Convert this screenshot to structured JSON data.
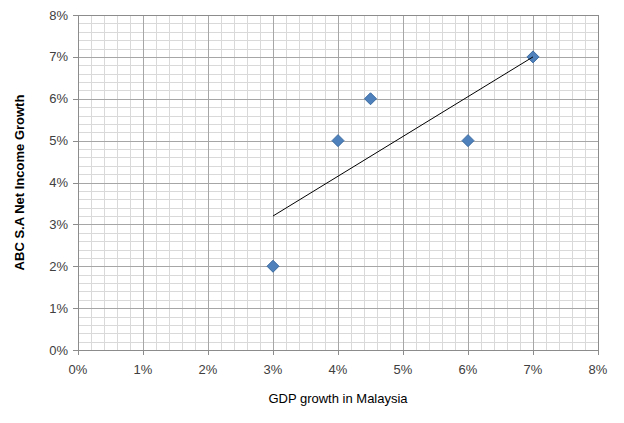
{
  "chart_data": {
    "type": "scatter",
    "x_label": "GDP growth in Malaysia",
    "y_label": "ABC S.A Net Income Growth",
    "series": [
      {
        "type": "scatter",
        "x": [
          3,
          4,
          4.5,
          6,
          7
        ],
        "values": [
          2,
          5,
          6,
          5,
          7
        ],
        "color": "#4f81bd",
        "marker": "diamond"
      },
      {
        "type": "line",
        "x": [
          3,
          7
        ],
        "values": [
          3.2,
          7.0
        ],
        "color": "#000000",
        "line_style": "solid"
      }
    ],
    "xlim": [
      0,
      8
    ],
    "ylim": [
      0,
      8
    ],
    "xticks": [
      {
        "value": 0,
        "label": "0%"
      },
      {
        "value": 1,
        "label": "1%"
      },
      {
        "value": 2,
        "label": "2%"
      },
      {
        "value": 3,
        "label": "3%"
      },
      {
        "value": 4,
        "label": "4%"
      },
      {
        "value": 5,
        "label": "5%"
      },
      {
        "value": 6,
        "label": "6%"
      },
      {
        "value": 7,
        "label": "7%"
      },
      {
        "value": 8,
        "label": "8%"
      }
    ],
    "yticks": [
      {
        "value": 0,
        "label": "0%"
      },
      {
        "value": 1,
        "label": "1%"
      },
      {
        "value": 2,
        "label": "2%"
      },
      {
        "value": 3,
        "label": "3%"
      },
      {
        "value": 4,
        "label": "4%"
      },
      {
        "value": 5,
        "label": "5%"
      },
      {
        "value": 6,
        "label": "6%"
      },
      {
        "value": 7,
        "label": "7%"
      },
      {
        "value": 8,
        "label": "8%"
      }
    ],
    "grid": true
  }
}
